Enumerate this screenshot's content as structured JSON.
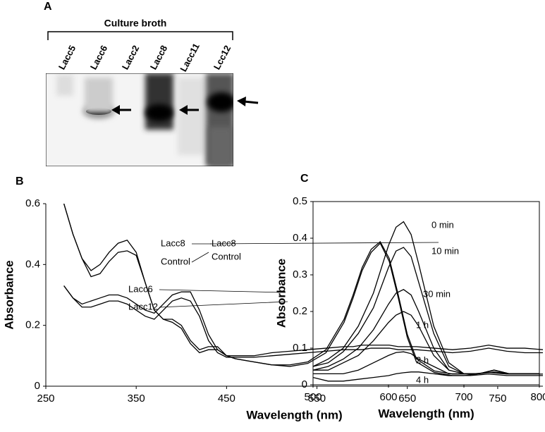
{
  "panel_labels": [
    "A",
    "B",
    "C"
  ],
  "gel": {
    "title": "Culture broth",
    "lanes": [
      "Lacc5",
      "Lacc6",
      "Lacc2",
      "Lacc8",
      "Lacc11",
      "Lcc12"
    ]
  },
  "chart_data": [
    {
      "type": "line",
      "x_label": "Wavelength (nm)",
      "y_label": "Absorbance",
      "x": [
        270,
        280,
        290,
        300,
        310,
        320,
        330,
        340,
        350,
        360,
        370,
        380,
        390,
        400,
        410,
        420,
        430,
        440,
        450,
        460,
        480,
        500,
        520,
        540,
        560,
        580,
        590,
        600,
        610,
        620,
        630,
        640,
        650,
        660,
        680,
        700,
        720,
        740,
        760,
        780,
        800
      ],
      "series": [
        {
          "name": "Lacc8",
          "color": "#000000",
          "values": [
            0.6,
            0.5,
            0.42,
            0.38,
            0.4,
            0.44,
            0.47,
            0.48,
            0.44,
            0.34,
            0.25,
            0.22,
            0.22,
            0.2,
            0.15,
            0.12,
            0.13,
            0.13,
            0.1,
            0.09,
            0.08,
            0.07,
            0.07,
            0.08,
            0.12,
            0.22,
            0.3,
            0.39,
            0.45,
            0.475,
            0.42,
            0.3,
            0.17,
            0.09,
            0.05,
            0.04,
            0.04,
            0.045,
            0.04,
            0.04,
            0.04
          ]
        },
        {
          "name": "Control",
          "color": "#000000",
          "values": [
            0.6,
            0.5,
            0.42,
            0.36,
            0.37,
            0.41,
            0.44,
            0.445,
            0.43,
            0.34,
            0.25,
            0.22,
            0.21,
            0.19,
            0.14,
            0.11,
            0.12,
            0.12,
            0.1,
            0.09,
            0.08,
            0.07,
            0.065,
            0.075,
            0.11,
            0.21,
            0.29,
            0.38,
            0.44,
            0.47,
            0.41,
            0.29,
            0.16,
            0.08,
            0.045,
            0.035,
            0.035,
            0.04,
            0.035,
            0.035,
            0.035
          ]
        },
        {
          "name": "Lacc6",
          "color": "#000000",
          "values": [
            0.33,
            0.29,
            0.27,
            0.28,
            0.29,
            0.3,
            0.3,
            0.29,
            0.27,
            0.25,
            0.24,
            0.27,
            0.3,
            0.31,
            0.31,
            0.25,
            0.17,
            0.12,
            0.1,
            0.1,
            0.1,
            0.11,
            0.115,
            0.12,
            0.125,
            0.13,
            0.13,
            0.135,
            0.135,
            0.135,
            0.135,
            0.13,
            0.13,
            0.13,
            0.125,
            0.12,
            0.125,
            0.135,
            0.125,
            0.125,
            0.12
          ]
        },
        {
          "name": "Lacc12",
          "color": "#000000",
          "values": [
            0.33,
            0.29,
            0.26,
            0.26,
            0.27,
            0.28,
            0.28,
            0.27,
            0.25,
            0.23,
            0.22,
            0.25,
            0.28,
            0.29,
            0.28,
            0.23,
            0.15,
            0.11,
            0.095,
            0.095,
            0.095,
            0.1,
            0.105,
            0.11,
            0.115,
            0.12,
            0.12,
            0.12,
            0.125,
            0.125,
            0.125,
            0.12,
            0.12,
            0.12,
            0.115,
            0.11,
            0.115,
            0.125,
            0.115,
            0.11,
            0.11
          ]
        }
      ],
      "annotations": [
        "Lacc8",
        "Control"
      ],
      "xlim": [
        250,
        800
      ],
      "xticks": [
        250,
        350,
        450,
        550,
        650,
        750
      ],
      "ylim": [
        0,
        0.6
      ],
      "yticks": [
        0,
        0.2,
        0.4,
        0.6
      ],
      "frame": false
    },
    {
      "type": "line",
      "x_label": "Wavelength (nm)",
      "y_label": "Absorbance",
      "x": [
        500,
        520,
        540,
        560,
        580,
        600,
        610,
        620,
        630,
        640,
        660,
        680,
        700,
        720,
        740,
        760,
        780,
        800
      ],
      "series": [
        {
          "name": "0 min",
          "color": "#000000",
          "values": [
            0.05,
            0.07,
            0.1,
            0.16,
            0.25,
            0.38,
            0.43,
            0.445,
            0.41,
            0.33,
            0.16,
            0.06,
            0.03,
            0.03,
            0.04,
            0.03,
            0.03,
            0.03
          ]
        },
        {
          "name": "10 min",
          "color": "#000000",
          "values": [
            0.05,
            0.06,
            0.09,
            0.14,
            0.21,
            0.32,
            0.365,
            0.375,
            0.35,
            0.28,
            0.14,
            0.05,
            0.03,
            0.03,
            0.04,
            0.03,
            0.03,
            0.03
          ]
        },
        {
          "name": "30 min",
          "color": "#000000",
          "values": [
            0.04,
            0.05,
            0.07,
            0.1,
            0.15,
            0.22,
            0.25,
            0.26,
            0.245,
            0.2,
            0.1,
            0.04,
            0.03,
            0.03,
            0.04,
            0.03,
            0.03,
            0.03
          ]
        },
        {
          "name": "1 h",
          "color": "#000000",
          "values": [
            0.04,
            0.04,
            0.06,
            0.08,
            0.12,
            0.17,
            0.19,
            0.2,
            0.19,
            0.16,
            0.08,
            0.04,
            0.03,
            0.03,
            0.04,
            0.03,
            0.03,
            0.03
          ]
        },
        {
          "name": "2 h",
          "color": "#000000",
          "values": [
            0.03,
            0.03,
            0.03,
            0.04,
            0.06,
            0.08,
            0.088,
            0.09,
            0.085,
            0.07,
            0.05,
            0.03,
            0.03,
            0.03,
            0.04,
            0.03,
            0.03,
            0.03
          ]
        },
        {
          "name": "4 h",
          "color": "#000000",
          "values": [
            0.02,
            0.01,
            0.01,
            0.015,
            0.02,
            0.025,
            0.03,
            0.033,
            0.035,
            0.035,
            0.03,
            0.025,
            0.025,
            0.03,
            0.035,
            0.03,
            0.03,
            0.03
          ]
        }
      ],
      "xlim": [
        500,
        800
      ],
      "xticks": [
        500,
        600,
        700,
        800
      ],
      "ylim": [
        0,
        0.5
      ],
      "yticks": [
        0,
        0.1,
        0.2,
        0.3,
        0.4,
        0.5
      ],
      "frame": true
    }
  ]
}
